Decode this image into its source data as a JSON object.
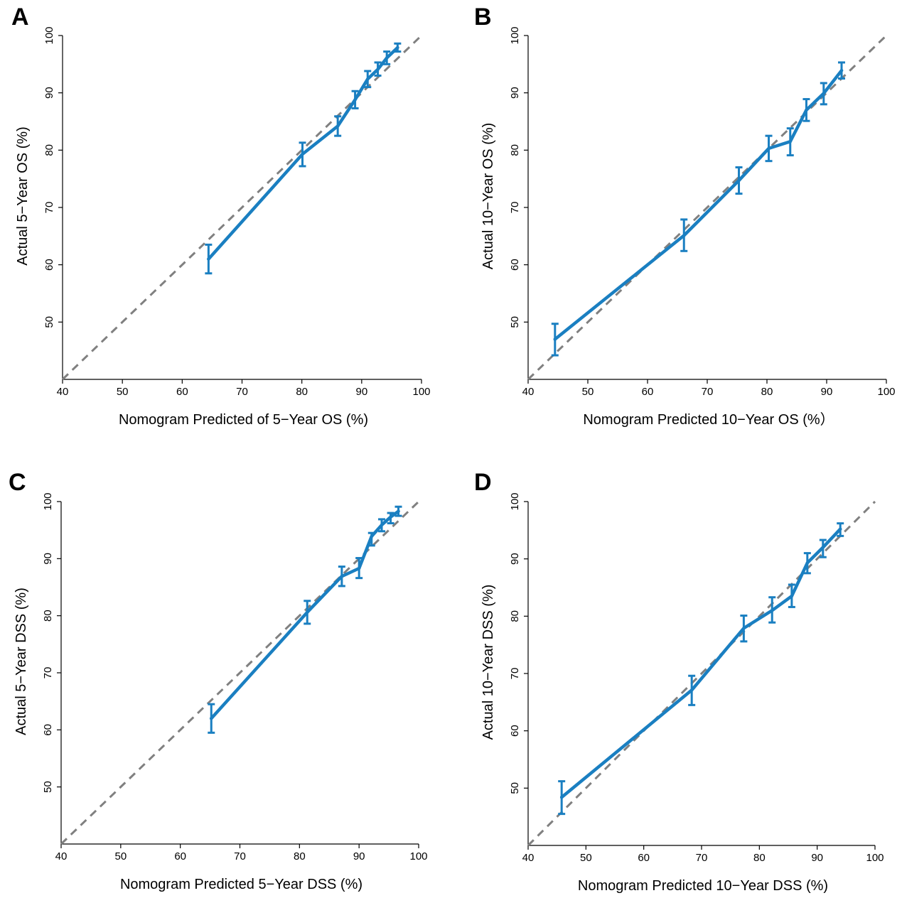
{
  "colors": {
    "series": "#1a7fc1",
    "reference": "#808080",
    "axis": "#000000"
  },
  "chart_data": [
    {
      "panel": "A",
      "type": "line",
      "xlabel": "Nomogram Predicted of 5−Year OS (%)",
      "ylabel": "Actual 5−Year OS (%)",
      "xlim": [
        40,
        100
      ],
      "ylim": [
        40,
        100
      ],
      "xticks": [
        "40",
        "50",
        "60",
        "70",
        "80",
        "90",
        "100"
      ],
      "yticks": [
        "50",
        "60",
        "70",
        "80",
        "90",
        "100"
      ],
      "reference_line": "y = x",
      "grid": false,
      "series": [
        {
          "x": [
            64.4,
            80.1,
            86.0,
            88.9,
            91.0,
            92.7,
            94.2,
            96.0
          ],
          "y": [
            61.0,
            79.3,
            84.2,
            88.8,
            92.4,
            94.1,
            96.1,
            97.9
          ],
          "err_low": [
            58.5,
            77.2,
            82.5,
            87.3,
            91.0,
            93.0,
            95.0,
            97.2
          ],
          "err_high": [
            63.5,
            81.3,
            85.9,
            90.3,
            93.8,
            95.3,
            97.2,
            98.6
          ]
        }
      ]
    },
    {
      "panel": "B",
      "type": "line",
      "xlabel": "Nomogram Predicted 10−Year OS (%）",
      "ylabel": "Actual 10−Year OS (%)",
      "xlim": [
        40,
        100
      ],
      "ylim": [
        40,
        100
      ],
      "xticks": [
        "40",
        "50",
        "60",
        "70",
        "80",
        "90",
        "100"
      ],
      "yticks": [
        "50",
        "60",
        "70",
        "80",
        "90",
        "100"
      ],
      "reference_line": "y = x",
      "grid": false,
      "series": [
        {
          "x": [
            44.5,
            66.1,
            75.3,
            80.3,
            83.9,
            86.6,
            89.5,
            92.5
          ],
          "y": [
            47.0,
            65.1,
            74.7,
            80.3,
            81.5,
            87.0,
            89.9,
            93.9
          ],
          "err_low": [
            44.2,
            62.4,
            72.4,
            78.1,
            79.1,
            85.1,
            88.0,
            92.5
          ],
          "err_high": [
            49.7,
            67.9,
            77.0,
            82.5,
            83.8,
            88.9,
            91.7,
            95.3
          ]
        }
      ]
    },
    {
      "panel": "C",
      "type": "line",
      "xlabel": "Nomogram Predicted 5−Year DSS (%)",
      "ylabel": "Actual 5−Year DSS (%)",
      "xlim": [
        40,
        100
      ],
      "ylim": [
        40,
        100
      ],
      "xticks": [
        "40",
        "50",
        "60",
        "70",
        "80",
        "90",
        "100"
      ],
      "yticks": [
        "50",
        "60",
        "70",
        "80",
        "90",
        "100"
      ],
      "reference_line": "y = x",
      "grid": false,
      "series": [
        {
          "x": [
            65.2,
            81.3,
            87.1,
            90.0,
            92.1,
            93.8,
            95.3,
            96.6
          ],
          "y": [
            62.0,
            80.6,
            86.9,
            88.3,
            93.9,
            95.9,
            97.3,
            98.3
          ],
          "err_low": [
            59.5,
            78.6,
            85.2,
            86.6,
            92.3,
            94.8,
            96.2,
            97.5
          ],
          "err_high": [
            64.5,
            82.6,
            88.6,
            90.1,
            94.5,
            96.9,
            98.0,
            99.1
          ]
        }
      ]
    },
    {
      "panel": "D",
      "type": "line",
      "xlabel": "Nomogram Predicted 10−Year DSS (%)",
      "ylabel": "Actual 10−Year DSS (%)",
      "xlim": [
        40,
        100
      ],
      "ylim": [
        40,
        100
      ],
      "xticks": [
        "40",
        "50",
        "60",
        "70",
        "80",
        "90",
        "100"
      ],
      "yticks": [
        "50",
        "60",
        "70",
        "80",
        "90",
        "100"
      ],
      "reference_line": "y = x",
      "grid": false,
      "series": [
        {
          "x": [
            45.8,
            68.3,
            77.3,
            82.2,
            85.6,
            88.3,
            91.0,
            94.0
          ],
          "y": [
            48.4,
            67.1,
            77.9,
            81.0,
            83.5,
            89.3,
            92.0,
            95.2
          ],
          "err_low": [
            45.5,
            64.5,
            75.6,
            78.9,
            81.6,
            87.5,
            90.3,
            94.0
          ],
          "err_high": [
            51.2,
            69.6,
            80.1,
            83.3,
            85.5,
            91.0,
            93.3,
            96.2
          ]
        }
      ]
    }
  ]
}
